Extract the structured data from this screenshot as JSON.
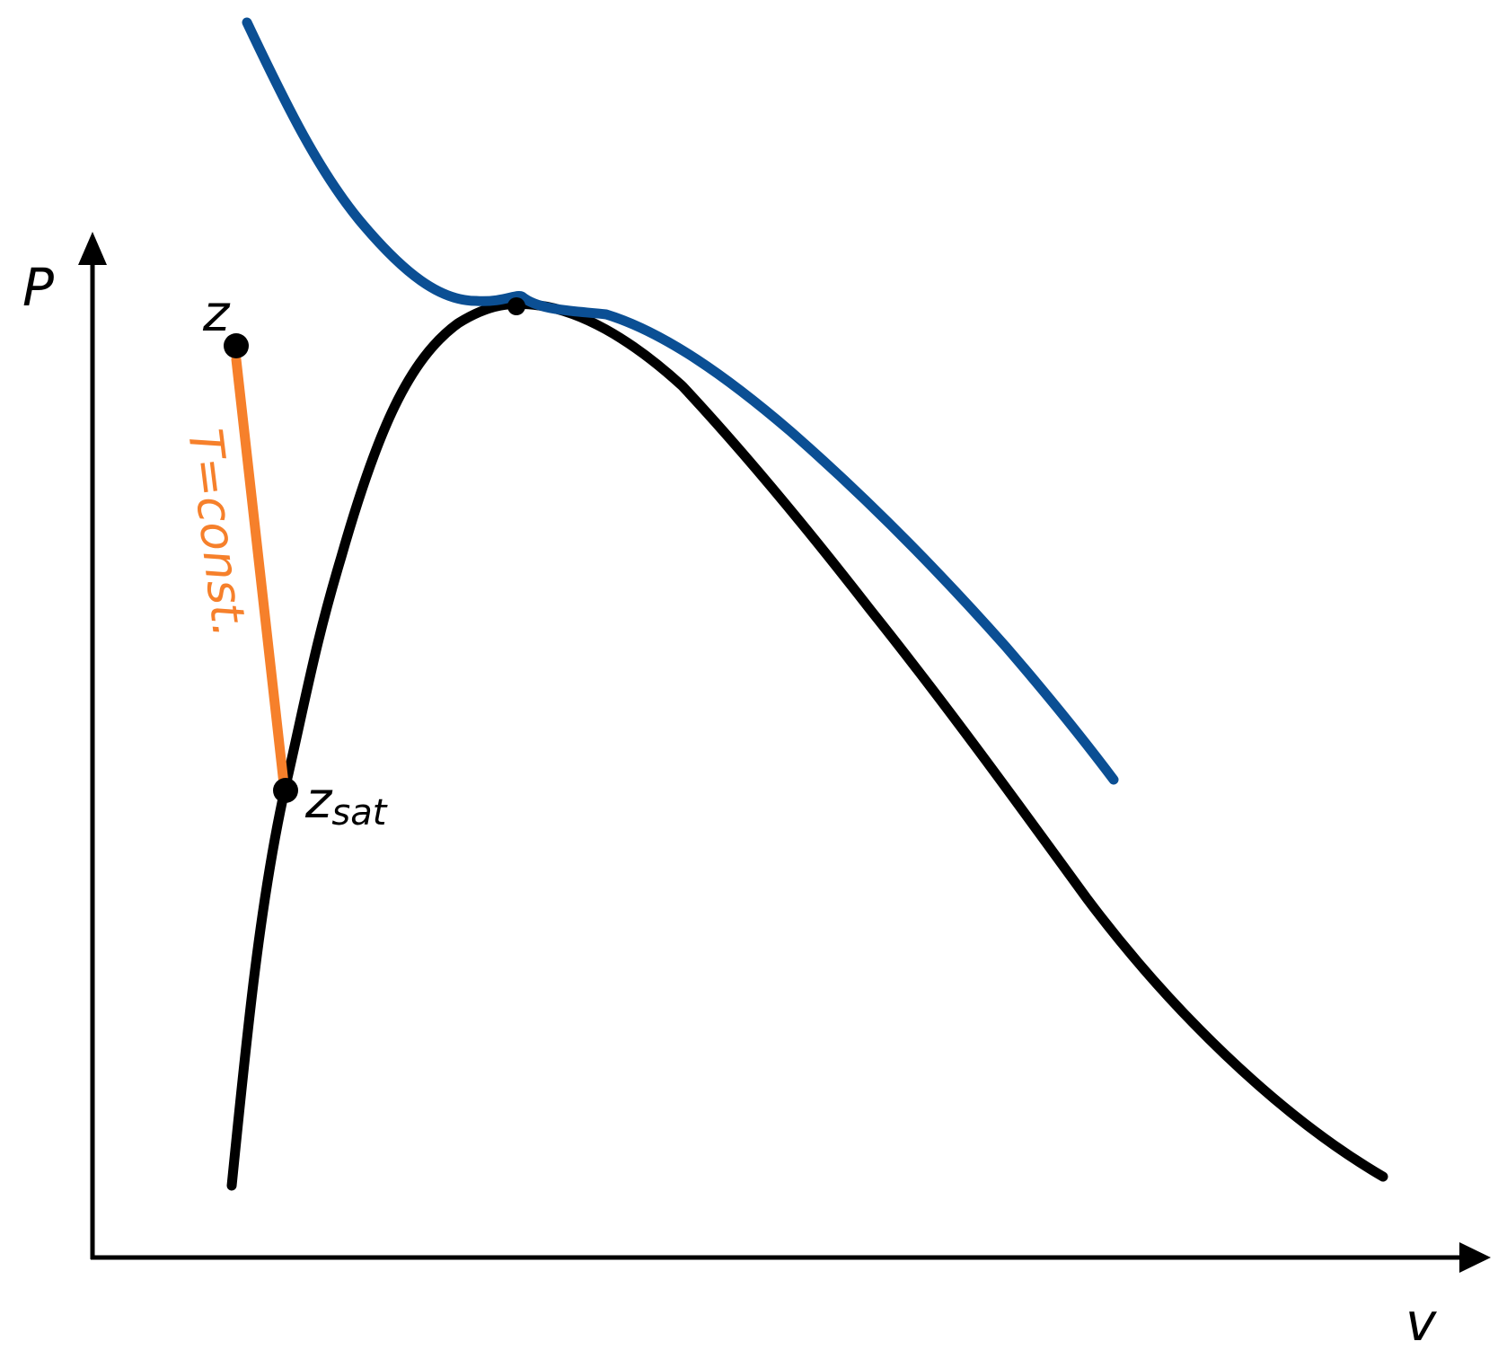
{
  "axes": {
    "y_label": "P",
    "x_label": "v"
  },
  "points": {
    "z": {
      "label": "z"
    },
    "z_sat": {
      "label": "z",
      "subscript": "sat"
    }
  },
  "isotherm": {
    "label": "T=const."
  },
  "colors": {
    "saturation_curve": "#000000",
    "critical_isotherm": "#0b4f94",
    "isotherm_line": "#f6802b",
    "axes": "#000000",
    "points": "#000000"
  }
}
